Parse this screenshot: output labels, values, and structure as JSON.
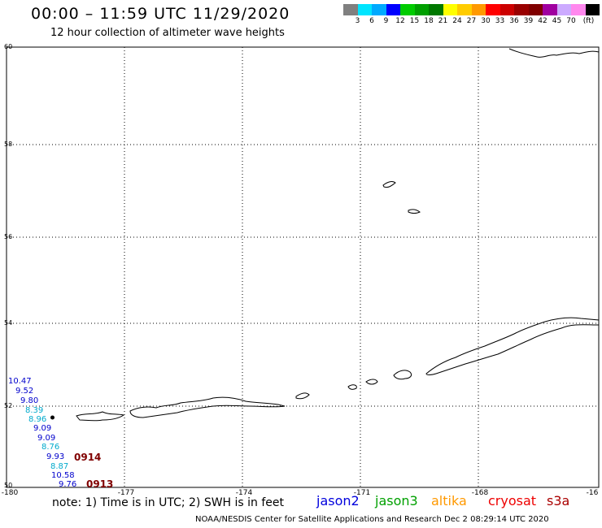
{
  "header": {
    "title": "00:00 – 11:59 UTC 11/29/2020",
    "subtitle": "12 hour collection of altimeter wave heights"
  },
  "colorbar": {
    "colors": [
      "#808080",
      "#00e5ff",
      "#00aaff",
      "#0000ff",
      "#00cc00",
      "#00a000",
      "#007800",
      "#ffff00",
      "#ffcc00",
      "#ff9900",
      "#ff0000",
      "#cc0000",
      "#990000",
      "#800000",
      "#a000a0",
      "#ccaaff",
      "#ff88ee",
      "#000000"
    ],
    "labels": [
      "3",
      "6",
      "9",
      "12",
      "15",
      "18",
      "21",
      "24",
      "27",
      "30",
      "33",
      "36",
      "39",
      "42",
      "45",
      "70",
      "(ft)"
    ]
  },
  "map": {
    "lat_labels": [
      "60",
      "58",
      "56",
      "54",
      "52",
      "50"
    ],
    "lon_labels": [
      "-180",
      "-177",
      "-174",
      "-171",
      "-168",
      "-16"
    ]
  },
  "swh_values": [
    {
      "value": "10.47",
      "color": "#0000cc"
    },
    {
      "value": "9.52",
      "color": "#0000cc"
    },
    {
      "value": "9.80",
      "color": "#0000cc"
    },
    {
      "value": "8.39",
      "color": "#00aacc"
    },
    {
      "value": "8.96",
      "color": "#00aacc"
    },
    {
      "value": "9.09",
      "color": "#0000cc"
    },
    {
      "value": "9.09",
      "color": "#0000cc"
    },
    {
      "value": "8.76",
      "color": "#00aacc"
    },
    {
      "value": "9.93",
      "color": "#0000cc"
    },
    {
      "value": "8.87",
      "color": "#00aacc"
    },
    {
      "value": "10.58",
      "color": "#0000cc"
    },
    {
      "value": "9.76",
      "color": "#0000cc"
    }
  ],
  "pass_times": [
    "0914",
    "0913"
  ],
  "note": "note: 1) Time is in UTC; 2) SWH is in feet",
  "satellites": [
    {
      "name": "jason2",
      "color": "#0000dd"
    },
    {
      "name": "jason3",
      "color": "#00a000"
    },
    {
      "name": "altika",
      "color": "#ff9900"
    },
    {
      "name": "cryosat",
      "color": "#ee0000"
    },
    {
      "name": "s3a",
      "color": "#aa0000"
    }
  ],
  "footer": "NOAA/NESDIS Center for Satellite Applications and Research    Dec  2 08:29:14 UTC 2020"
}
